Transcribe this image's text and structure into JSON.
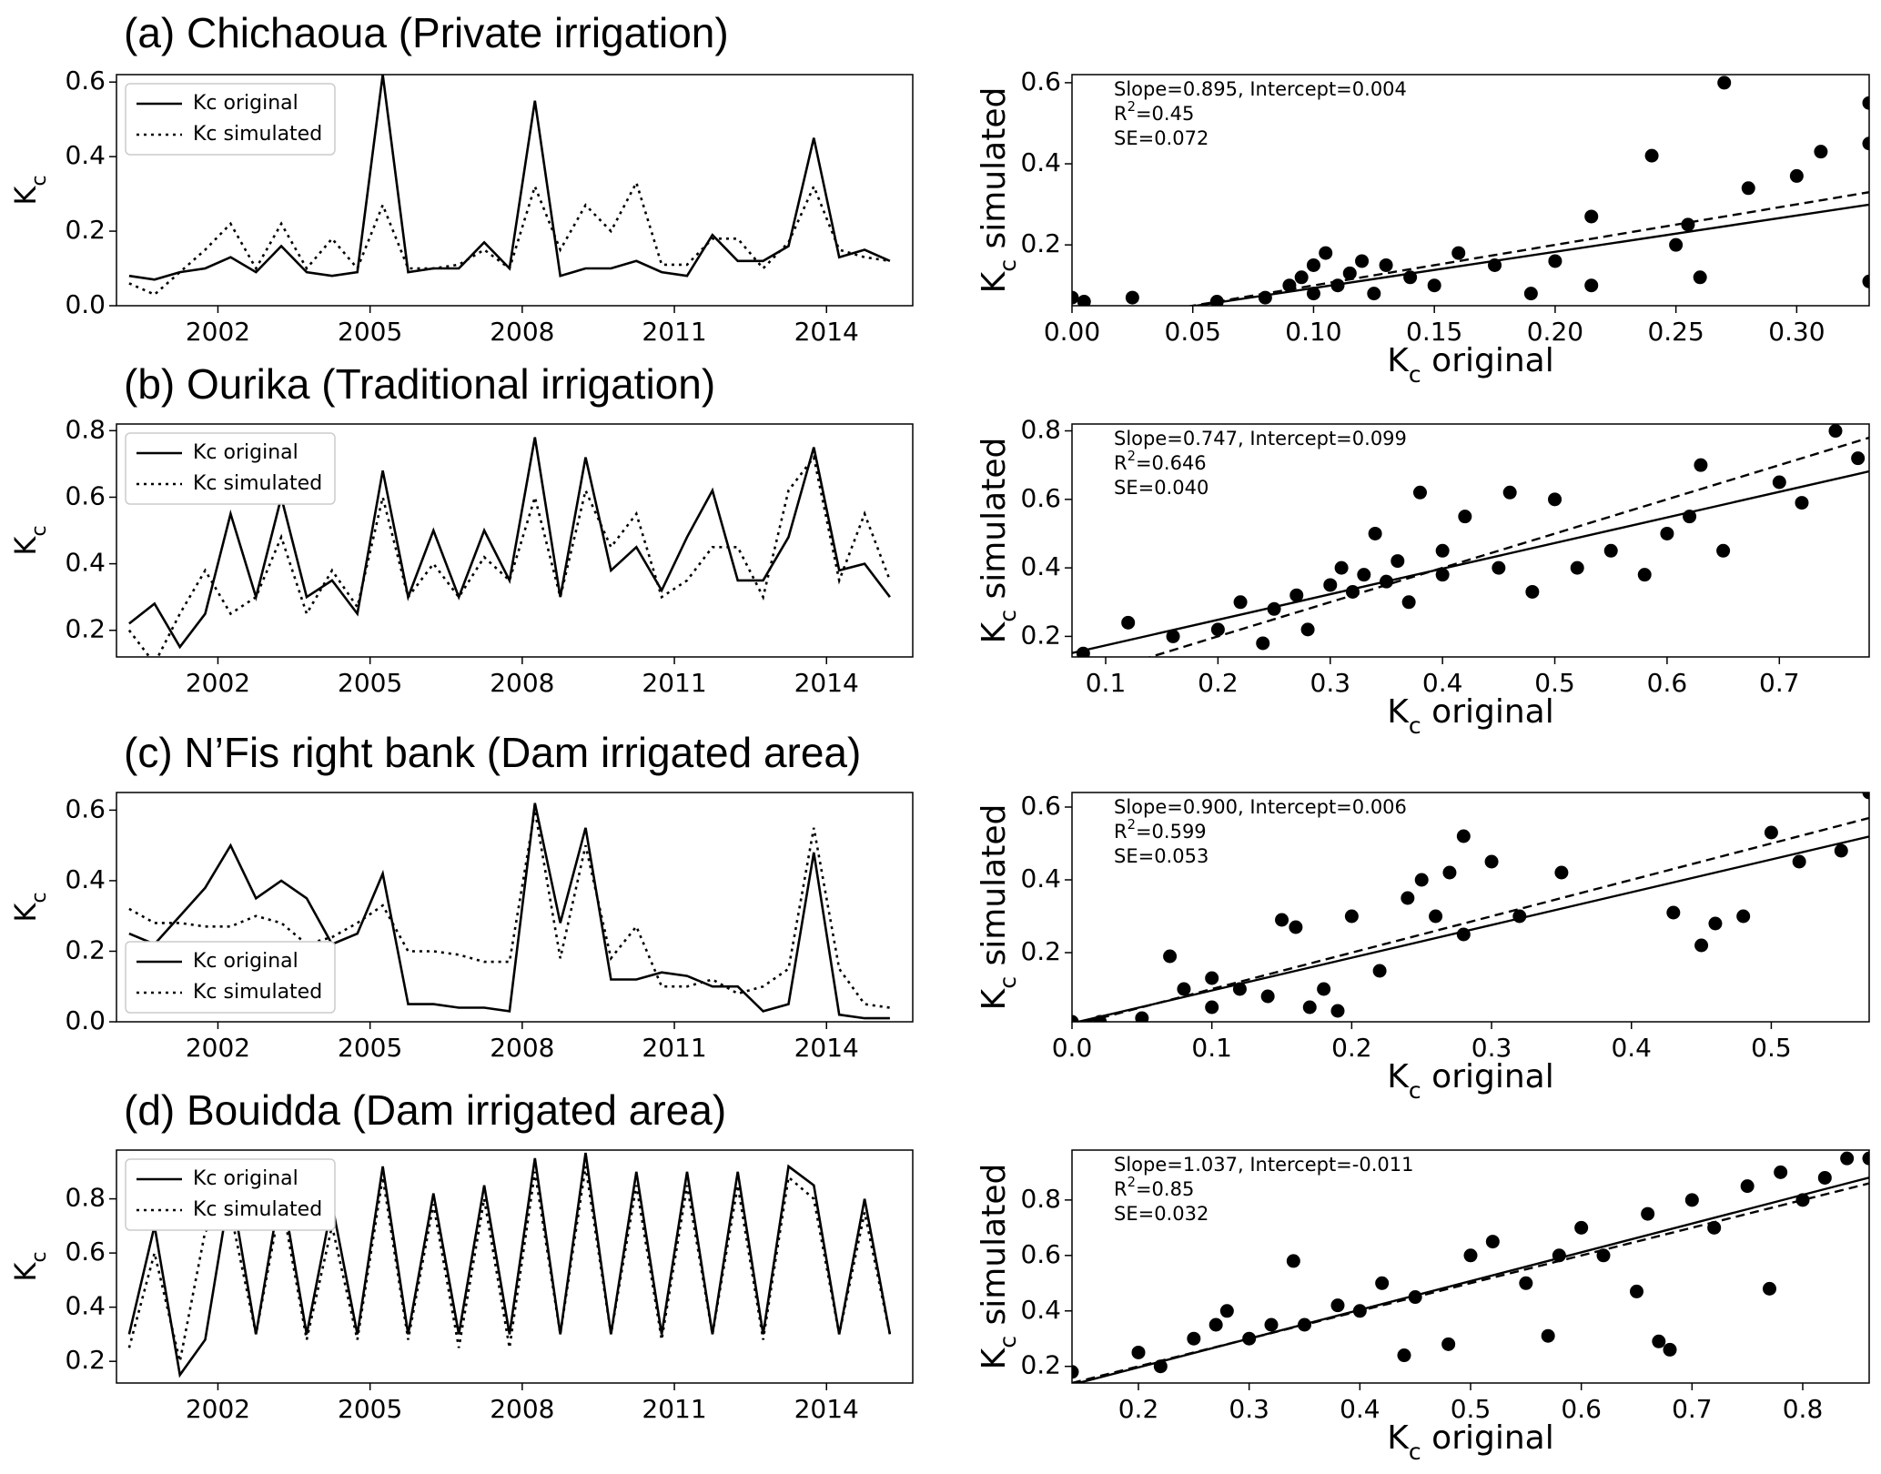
{
  "chart_data": [
    {
      "type": "line",
      "title": "(a) Chichaoua (Private irrigation)",
      "y_label": [
        "K",
        "c"
      ],
      "x": [
        2000.25,
        2000.75,
        2001.25,
        2001.75,
        2002.25,
        2002.75,
        2003.25,
        2003.75,
        2004.25,
        2004.75,
        2005.25,
        2005.75,
        2006.25,
        2006.75,
        2007.25,
        2007.75,
        2008.25,
        2008.75,
        2009.25,
        2009.75,
        2010.25,
        2010.75,
        2011.25,
        2011.75,
        2012.25,
        2012.75,
        2013.25,
        2013.75,
        2014.25,
        2014.75,
        2015.25
      ],
      "series": [
        {
          "name": "Kc original",
          "color": "#000000",
          "dash": "solid",
          "values": [
            0.08,
            0.07,
            0.09,
            0.1,
            0.13,
            0.09,
            0.16,
            0.09,
            0.08,
            0.09,
            0.62,
            0.09,
            0.1,
            0.1,
            0.17,
            0.1,
            0.55,
            0.08,
            0.1,
            0.1,
            0.12,
            0.09,
            0.08,
            0.19,
            0.12,
            0.12,
            0.16,
            0.45,
            0.13,
            0.15,
            0.12
          ]
        },
        {
          "name": "Kc simulated",
          "color": "#000000",
          "dash": "dotted",
          "values": [
            0.06,
            0.03,
            0.09,
            0.15,
            0.22,
            0.1,
            0.22,
            0.1,
            0.18,
            0.1,
            0.27,
            0.1,
            0.1,
            0.11,
            0.15,
            0.1,
            0.32,
            0.15,
            0.27,
            0.2,
            0.33,
            0.11,
            0.11,
            0.18,
            0.18,
            0.1,
            0.17,
            0.32,
            0.15,
            0.13,
            0.12
          ]
        }
      ],
      "xlim": [
        2000,
        2015.7
      ],
      "xticks": [
        2002,
        2005,
        2008,
        2011,
        2014
      ],
      "ylim": [
        0,
        0.62
      ],
      "yticks": [
        {
          "value": 0,
          "label": "0.0"
        },
        0.2,
        0.4,
        0.6
      ],
      "legend": "upper left"
    },
    {
      "type": "scatter",
      "x_label": [
        "K",
        "c",
        " original"
      ],
      "y_label": [
        "K",
        "c",
        " simulated"
      ],
      "x": [
        0.0,
        0.005,
        0.025,
        0.06,
        0.08,
        0.09,
        0.095,
        0.1,
        0.1,
        0.105,
        0.11,
        0.115,
        0.12,
        0.125,
        0.13,
        0.14,
        0.15,
        0.16,
        0.175,
        0.19,
        0.2,
        0.215,
        0.215,
        0.24,
        0.25,
        0.255,
        0.26,
        0.27,
        0.28,
        0.3,
        0.31,
        0.33,
        0.33,
        0.33
      ],
      "values": [
        0.07,
        0.06,
        0.07,
        0.06,
        0.07,
        0.1,
        0.12,
        0.08,
        0.15,
        0.18,
        0.1,
        0.13,
        0.16,
        0.08,
        0.15,
        0.12,
        0.1,
        0.18,
        0.15,
        0.08,
        0.16,
        0.27,
        0.1,
        0.42,
        0.2,
        0.25,
        0.12,
        0.6,
        0.34,
        0.37,
        0.43,
        0.55,
        0.45,
        0.11
      ],
      "color": "#000000",
      "fit": {
        "slope": 0.895,
        "intercept": 0.004
      },
      "annotations": {
        "fit": "Slope=0.895, Intercept=0.004",
        "r2": [
          "R",
          "2",
          "=0.45"
        ],
        "se": "SE=0.072"
      },
      "xlim": [
        0,
        0.33
      ],
      "xticks": [
        {
          "value": 0,
          "label": "0.00"
        },
        0.05,
        {
          "value": 0.1,
          "label": "0.10"
        },
        0.15,
        {
          "value": 0.2,
          "label": "0.20"
        },
        0.25,
        {
          "value": 0.3,
          "label": "0.30"
        }
      ],
      "ylim": [
        0.05,
        0.62
      ],
      "yticks": [
        0.2,
        0.4,
        0.6
      ]
    },
    {
      "type": "line",
      "title": "(b) Ourika (Traditional irrigation)",
      "y_label": [
        "K",
        "c"
      ],
      "x": [
        2000.25,
        2000.75,
        2001.25,
        2001.75,
        2002.25,
        2002.75,
        2003.25,
        2003.75,
        2004.25,
        2004.75,
        2005.25,
        2005.75,
        2006.25,
        2006.75,
        2007.25,
        2007.75,
        2008.25,
        2008.75,
        2009.25,
        2009.75,
        2010.25,
        2010.75,
        2011.25,
        2011.75,
        2012.25,
        2012.75,
        2013.25,
        2013.75,
        2014.25,
        2014.75,
        2015.25
      ],
      "series": [
        {
          "name": "Kc original",
          "color": "#000000",
          "dash": "solid",
          "values": [
            0.22,
            0.28,
            0.15,
            0.25,
            0.55,
            0.3,
            0.6,
            0.3,
            0.35,
            0.25,
            0.68,
            0.3,
            0.5,
            0.3,
            0.5,
            0.35,
            0.78,
            0.3,
            0.72,
            0.38,
            0.45,
            0.32,
            0.48,
            0.62,
            0.35,
            0.35,
            0.48,
            0.75,
            0.38,
            0.4,
            0.3
          ]
        },
        {
          "name": "Kc simulated",
          "color": "#000000",
          "dash": "dotted",
          "values": [
            0.2,
            0.1,
            0.25,
            0.38,
            0.25,
            0.3,
            0.48,
            0.25,
            0.38,
            0.27,
            0.6,
            0.3,
            0.4,
            0.3,
            0.42,
            0.35,
            0.6,
            0.3,
            0.62,
            0.45,
            0.55,
            0.3,
            0.35,
            0.45,
            0.45,
            0.3,
            0.62,
            0.72,
            0.35,
            0.55,
            0.35
          ]
        }
      ],
      "xlim": [
        2000,
        2015.7
      ],
      "xticks": [
        2002,
        2005,
        2008,
        2011,
        2014
      ],
      "ylim": [
        0.12,
        0.82
      ],
      "yticks": [
        0.2,
        0.4,
        0.6,
        0.8
      ],
      "legend": "upper left"
    },
    {
      "type": "scatter",
      "x_label": [
        "K",
        "c",
        " original"
      ],
      "y_label": [
        "K",
        "c",
        " simulated"
      ],
      "x": [
        0.08,
        0.12,
        0.16,
        0.2,
        0.22,
        0.24,
        0.25,
        0.27,
        0.28,
        0.3,
        0.31,
        0.32,
        0.33,
        0.34,
        0.35,
        0.36,
        0.37,
        0.38,
        0.4,
        0.4,
        0.42,
        0.45,
        0.46,
        0.48,
        0.5,
        0.52,
        0.55,
        0.58,
        0.6,
        0.62,
        0.63,
        0.65,
        0.7,
        0.72,
        0.75,
        0.77
      ],
      "values": [
        0.15,
        0.24,
        0.2,
        0.22,
        0.3,
        0.18,
        0.28,
        0.32,
        0.22,
        0.35,
        0.4,
        0.33,
        0.38,
        0.5,
        0.36,
        0.42,
        0.3,
        0.62,
        0.45,
        0.38,
        0.55,
        0.4,
        0.62,
        0.33,
        0.6,
        0.4,
        0.45,
        0.38,
        0.5,
        0.55,
        0.7,
        0.45,
        0.65,
        0.59,
        0.8,
        0.72
      ],
      "color": "#000000",
      "fit": {
        "slope": 0.747,
        "intercept": 0.099
      },
      "annotations": {
        "fit": "Slope=0.747, Intercept=0.099",
        "r2": [
          "R",
          "2",
          "=0.646"
        ],
        "se": "SE=0.040"
      },
      "xlim": [
        0.07,
        0.78
      ],
      "xticks": [
        0.1,
        0.2,
        0.3,
        0.4,
        0.5,
        0.6,
        0.7
      ],
      "ylim": [
        0.14,
        0.82
      ],
      "yticks": [
        0.2,
        0.4,
        0.6,
        0.8
      ]
    },
    {
      "type": "line",
      "title": "(c) N’Fis right bank (Dam irrigated area)",
      "y_label": [
        "K",
        "c"
      ],
      "x": [
        2000.25,
        2000.75,
        2001.25,
        2001.75,
        2002.25,
        2002.75,
        2003.25,
        2003.75,
        2004.25,
        2004.75,
        2005.25,
        2005.75,
        2006.25,
        2006.75,
        2007.25,
        2007.75,
        2008.25,
        2008.75,
        2009.25,
        2009.75,
        2010.25,
        2010.75,
        2011.25,
        2011.75,
        2012.25,
        2012.75,
        2013.25,
        2013.75,
        2014.25,
        2014.75,
        2015.25
      ],
      "series": [
        {
          "name": "Kc original",
          "color": "#000000",
          "dash": "solid",
          "values": [
            0.25,
            0.22,
            0.3,
            0.38,
            0.5,
            0.35,
            0.4,
            0.35,
            0.22,
            0.25,
            0.42,
            0.05,
            0.05,
            0.04,
            0.04,
            0.03,
            0.62,
            0.28,
            0.55,
            0.12,
            0.12,
            0.14,
            0.13,
            0.1,
            0.1,
            0.03,
            0.05,
            0.48,
            0.02,
            0.01,
            0.01
          ]
        },
        {
          "name": "Kc simulated",
          "color": "#000000",
          "dash": "dotted",
          "values": [
            0.32,
            0.28,
            0.28,
            0.27,
            0.27,
            0.3,
            0.28,
            0.22,
            0.24,
            0.28,
            0.33,
            0.2,
            0.2,
            0.19,
            0.17,
            0.17,
            0.6,
            0.18,
            0.5,
            0.18,
            0.27,
            0.1,
            0.1,
            0.12,
            0.08,
            0.1,
            0.15,
            0.55,
            0.15,
            0.05,
            0.04
          ]
        }
      ],
      "xlim": [
        2000,
        2015.7
      ],
      "xticks": [
        2002,
        2005,
        2008,
        2011,
        2014
      ],
      "ylim": [
        0,
        0.65
      ],
      "yticks": [
        {
          "value": 0,
          "label": "0.0"
        },
        0.2,
        0.4,
        0.6
      ],
      "legend": "lower left"
    },
    {
      "type": "scatter",
      "x_label": [
        "K",
        "c",
        " original"
      ],
      "y_label": [
        "K",
        "c",
        " simulated"
      ],
      "x": [
        0.0,
        0.02,
        0.05,
        0.07,
        0.08,
        0.1,
        0.1,
        0.12,
        0.14,
        0.15,
        0.16,
        0.17,
        0.18,
        0.19,
        0.2,
        0.22,
        0.24,
        0.25,
        0.26,
        0.27,
        0.28,
        0.28,
        0.3,
        0.32,
        0.35,
        0.43,
        0.45,
        0.46,
        0.48,
        0.5,
        0.52,
        0.55,
        0.57
      ],
      "values": [
        0.01,
        0.01,
        0.02,
        0.19,
        0.1,
        0.05,
        0.13,
        0.1,
        0.08,
        0.29,
        0.27,
        0.05,
        0.1,
        0.04,
        0.3,
        0.15,
        0.35,
        0.4,
        0.3,
        0.42,
        0.52,
        0.25,
        0.45,
        0.3,
        0.42,
        0.31,
        0.22,
        0.28,
        0.3,
        0.53,
        0.45,
        0.48,
        0.64
      ],
      "color": "#000000",
      "fit": {
        "slope": 0.9,
        "intercept": 0.006
      },
      "annotations": {
        "fit": "Slope=0.900, Intercept=0.006",
        "r2": [
          "R",
          "2",
          "=0.599"
        ],
        "se": "SE=0.053"
      },
      "xlim": [
        0,
        0.57
      ],
      "xticks": [
        {
          "value": 0,
          "label": "0.0"
        },
        0.1,
        0.2,
        0.3,
        0.4,
        0.5
      ],
      "ylim": [
        0.01,
        0.64
      ],
      "yticks": [
        0.2,
        0.4,
        0.6
      ]
    },
    {
      "type": "line",
      "title": "(d) Bouidda (Dam irrigated area)",
      "y_label": [
        "K",
        "c"
      ],
      "x": [
        2000.25,
        2000.75,
        2001.25,
        2001.75,
        2002.25,
        2002.75,
        2003.25,
        2003.75,
        2004.25,
        2004.75,
        2005.25,
        2005.75,
        2006.25,
        2006.75,
        2007.25,
        2007.75,
        2008.25,
        2008.75,
        2009.25,
        2009.75,
        2010.25,
        2010.75,
        2011.25,
        2011.75,
        2012.25,
        2012.75,
        2013.25,
        2013.75,
        2014.25,
        2014.75,
        2015.25
      ],
      "series": [
        {
          "name": "Kc original",
          "color": "#000000",
          "dash": "solid",
          "values": [
            0.3,
            0.7,
            0.15,
            0.28,
            0.85,
            0.3,
            0.85,
            0.3,
            0.78,
            0.3,
            0.92,
            0.3,
            0.82,
            0.3,
            0.85,
            0.3,
            0.95,
            0.3,
            0.97,
            0.3,
            0.9,
            0.3,
            0.9,
            0.3,
            0.9,
            0.3,
            0.92,
            0.85,
            0.3,
            0.8,
            0.3
          ]
        },
        {
          "name": "Kc simulated",
          "color": "#000000",
          "dash": "dotted",
          "values": [
            0.25,
            0.6,
            0.2,
            0.68,
            0.75,
            0.3,
            0.8,
            0.28,
            0.7,
            0.28,
            0.88,
            0.28,
            0.78,
            0.25,
            0.8,
            0.25,
            0.9,
            0.3,
            0.92,
            0.3,
            0.85,
            0.28,
            0.85,
            0.3,
            0.85,
            0.28,
            0.88,
            0.8,
            0.3,
            0.75,
            0.3
          ]
        }
      ],
      "xlim": [
        2000,
        2015.7
      ],
      "xticks": [
        2002,
        2005,
        2008,
        2011,
        2014
      ],
      "ylim": [
        0.12,
        0.98
      ],
      "yticks": [
        0.2,
        0.4,
        0.6,
        0.8
      ],
      "legend": "upper left"
    },
    {
      "type": "scatter",
      "x_label": [
        "K",
        "c",
        " original"
      ],
      "y_label": [
        "K",
        "c",
        " simulated"
      ],
      "x": [
        0.14,
        0.2,
        0.22,
        0.25,
        0.27,
        0.28,
        0.3,
        0.32,
        0.34,
        0.35,
        0.38,
        0.4,
        0.42,
        0.44,
        0.45,
        0.48,
        0.5,
        0.52,
        0.55,
        0.57,
        0.58,
        0.6,
        0.62,
        0.65,
        0.66,
        0.67,
        0.68,
        0.7,
        0.72,
        0.75,
        0.77,
        0.78,
        0.8,
        0.82,
        0.84,
        0.86
      ],
      "values": [
        0.18,
        0.25,
        0.2,
        0.3,
        0.35,
        0.4,
        0.3,
        0.35,
        0.58,
        0.35,
        0.42,
        0.4,
        0.5,
        0.24,
        0.45,
        0.28,
        0.6,
        0.65,
        0.5,
        0.31,
        0.6,
        0.7,
        0.6,
        0.47,
        0.75,
        0.29,
        0.26,
        0.8,
        0.7,
        0.85,
        0.48,
        0.9,
        0.8,
        0.88,
        0.95,
        0.95
      ],
      "color": "#000000",
      "fit": {
        "slope": 1.037,
        "intercept": -0.011
      },
      "annotations": {
        "fit": "Slope=1.037, Intercept=-0.011",
        "r2": [
          "R",
          "2",
          "=0.85"
        ],
        "se": "SE=0.032"
      },
      "xlim": [
        0.14,
        0.86
      ],
      "xticks": [
        0.2,
        0.3,
        0.4,
        0.5,
        0.6,
        0.7,
        0.8
      ],
      "ylim": [
        0.14,
        0.98
      ],
      "yticks": [
        0.2,
        0.4,
        0.6,
        0.8
      ]
    }
  ]
}
